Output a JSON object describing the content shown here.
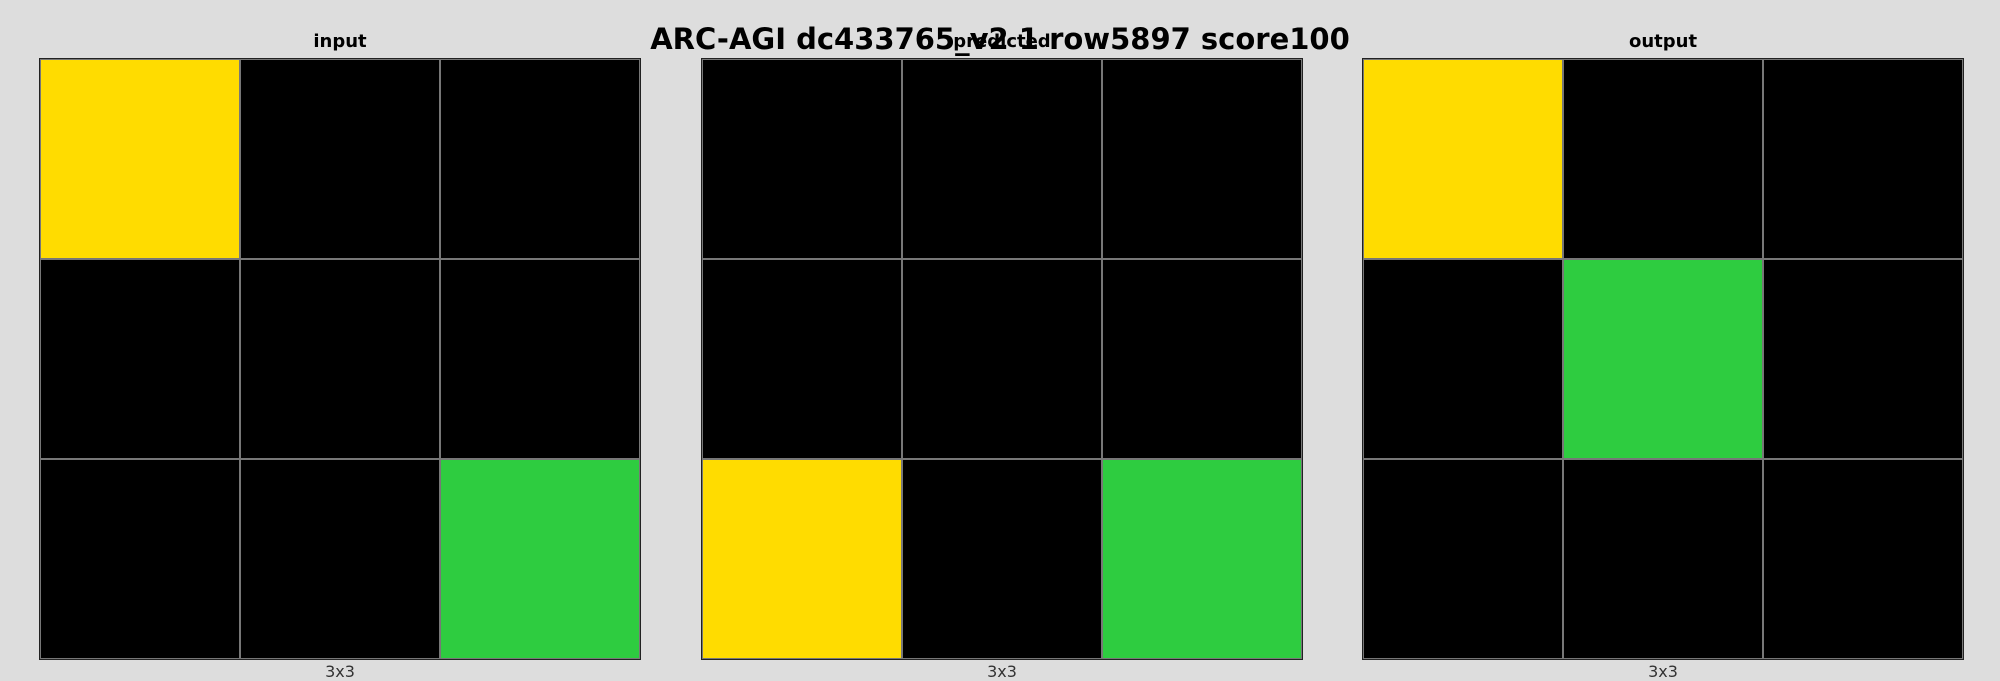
{
  "title": "ARC-AGI dc433765_v2 1 row5897 score100",
  "palette": {
    "0": "#000000",
    "3": "#2ecc40",
    "4": "#ffdc00"
  },
  "panels": [
    {
      "label": "input",
      "size_label": "3x3",
      "grid": [
        [
          4,
          0,
          0
        ],
        [
          0,
          0,
          0
        ],
        [
          0,
          0,
          3
        ]
      ]
    },
    {
      "label": "predicted",
      "size_label": "3x3",
      "grid": [
        [
          0,
          0,
          0
        ],
        [
          0,
          0,
          0
        ],
        [
          4,
          0,
          3
        ]
      ]
    },
    {
      "label": "output",
      "size_label": "3x3",
      "grid": [
        [
          4,
          0,
          0
        ],
        [
          0,
          3,
          0
        ],
        [
          0,
          0,
          0
        ]
      ]
    }
  ]
}
